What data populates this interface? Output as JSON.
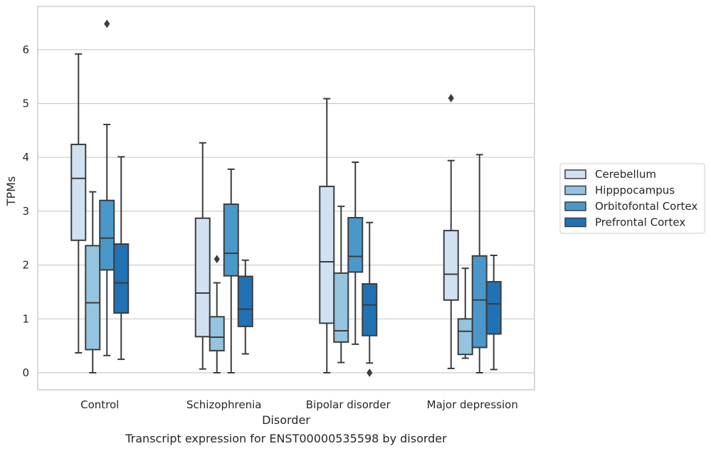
{
  "chart_data": {
    "type": "box",
    "title": "",
    "caption": "Transcript expression for ENST00000535598 by disorder",
    "xlabel": "Disorder",
    "ylabel": "TPMs",
    "categories": [
      "Control",
      "Schizophrenia",
      "Bipolar disorder",
      "Major depression"
    ],
    "ylim": [
      -0.3,
      6.8
    ],
    "yticks": [
      0,
      1,
      2,
      3,
      4,
      5,
      6
    ],
    "grid": "horizontal",
    "legend_position": "right",
    "series": [
      {
        "name": "Cerebellum",
        "color": "#d0e1f2",
        "boxes": [
          {
            "whisker_low": 0.37,
            "q1": 2.46,
            "median": 3.61,
            "q3": 4.24,
            "whisker_high": 5.92,
            "outliers": []
          },
          {
            "whisker_low": 0.07,
            "q1": 0.67,
            "median": 1.48,
            "q3": 2.87,
            "whisker_high": 4.27,
            "outliers": []
          },
          {
            "whisker_low": 0.0,
            "q1": 0.92,
            "median": 2.06,
            "q3": 3.46,
            "whisker_high": 5.09,
            "outliers": []
          },
          {
            "whisker_low": 0.08,
            "q1": 1.35,
            "median": 1.83,
            "q3": 2.64,
            "whisker_high": 3.94,
            "outliers": [
              5.1
            ]
          }
        ]
      },
      {
        "name": "Hipppocampus",
        "color": "#94c4df",
        "boxes": [
          {
            "whisker_low": 0.0,
            "q1": 0.43,
            "median": 1.3,
            "q3": 2.36,
            "whisker_high": 3.36,
            "outliers": []
          },
          {
            "whisker_low": 0.0,
            "q1": 0.41,
            "median": 0.66,
            "q3": 1.04,
            "whisker_high": 1.67,
            "outliers": [
              2.11
            ]
          },
          {
            "whisker_low": 0.19,
            "q1": 0.57,
            "median": 0.78,
            "q3": 1.85,
            "whisker_high": 3.09,
            "outliers": []
          },
          {
            "whisker_low": 0.27,
            "q1": 0.34,
            "median": 0.77,
            "q3": 1.0,
            "whisker_high": 1.94,
            "outliers": []
          }
        ]
      },
      {
        "name": "Orbitofontal Cortex",
        "color": "#4a98c9",
        "boxes": [
          {
            "whisker_low": 0.32,
            "q1": 1.91,
            "median": 2.5,
            "q3": 3.2,
            "whisker_high": 4.61,
            "outliers": [
              6.48
            ]
          },
          {
            "whisker_low": 0.0,
            "q1": 1.8,
            "median": 2.22,
            "q3": 3.13,
            "whisker_high": 3.78,
            "outliers": []
          },
          {
            "whisker_low": 0.53,
            "q1": 1.87,
            "median": 2.16,
            "q3": 2.88,
            "whisker_high": 3.91,
            "outliers": []
          },
          {
            "whisker_low": 0.0,
            "q1": 0.47,
            "median": 1.35,
            "q3": 2.17,
            "whisker_high": 4.05,
            "outliers": []
          }
        ]
      },
      {
        "name": "Prefrontal Cortex",
        "color": "#2171b5",
        "boxes": [
          {
            "whisker_low": 0.25,
            "q1": 1.11,
            "median": 1.67,
            "q3": 2.39,
            "whisker_high": 4.01,
            "outliers": []
          },
          {
            "whisker_low": 0.35,
            "q1": 0.86,
            "median": 1.18,
            "q3": 1.79,
            "whisker_high": 2.09,
            "outliers": []
          },
          {
            "whisker_low": 0.18,
            "q1": 0.69,
            "median": 1.26,
            "q3": 1.65,
            "whisker_high": 2.79,
            "outliers": [
              0.0
            ]
          },
          {
            "whisker_low": 0.06,
            "q1": 0.72,
            "median": 1.28,
            "q3": 1.69,
            "whisker_high": 2.18,
            "outliers": []
          }
        ]
      }
    ]
  }
}
